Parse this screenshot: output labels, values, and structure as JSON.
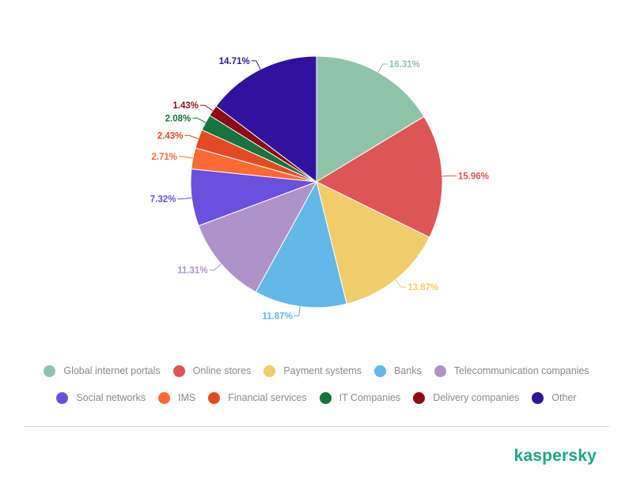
{
  "chart_data": {
    "type": "pie",
    "title": "",
    "slices": [
      {
        "label": "Global internet portals",
        "value": 16.31,
        "display": "16.31%",
        "color": "#8fc3a7"
      },
      {
        "label": "Online stores",
        "value": 15.96,
        "display": "15.96%",
        "color": "#dd5555"
      },
      {
        "label": "Payment systems",
        "value": 13.87,
        "display": "13.87%",
        "color": "#efcd6a"
      },
      {
        "label": "Banks",
        "value": 11.87,
        "display": "11.87%",
        "color": "#62b8e6"
      },
      {
        "label": "Telecommunication companies",
        "value": 11.31,
        "display": "11.31%",
        "color": "#ae93c9"
      },
      {
        "label": "Social networks",
        "value": 7.32,
        "display": "7.32%",
        "color": "#6a50de"
      },
      {
        "label": "IMS",
        "value": 2.71,
        "display": "2.71%",
        "color": "#fd6a32"
      },
      {
        "label": "Financial services",
        "value": 2.43,
        "display": "2.43%",
        "color": "#e34a24"
      },
      {
        "label": "IT Companies",
        "value": 2.08,
        "display": "2.08%",
        "color": "#167440"
      },
      {
        "label": "Delivery companies",
        "value": 1.43,
        "display": "1.43%",
        "color": "#8d0d14"
      },
      {
        "label": "Other",
        "value": 14.71,
        "display": "14.71%",
        "color": "#2f139c"
      }
    ],
    "legend_position": "bottom"
  },
  "brand": {
    "name": "kaspersky"
  }
}
